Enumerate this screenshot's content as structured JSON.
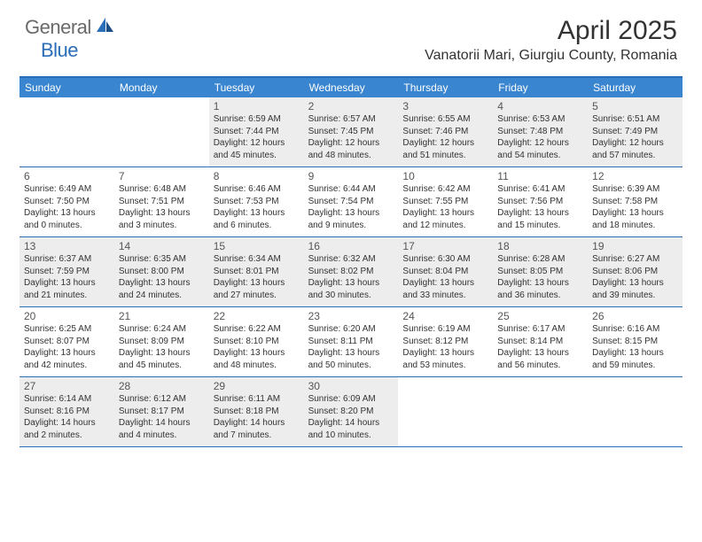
{
  "logo": {
    "text1": "General",
    "text2": "Blue"
  },
  "title": "April 2025",
  "location": "Vanatorii Mari, Giurgiu County, Romania",
  "colors": {
    "header_bg": "#3a85d0",
    "border": "#2a6db8",
    "shaded_bg": "#ededed",
    "text": "#333333",
    "logo_gray": "#6a6a6a",
    "logo_blue": "#2a6db8"
  },
  "day_names": [
    "Sunday",
    "Monday",
    "Tuesday",
    "Wednesday",
    "Thursday",
    "Friday",
    "Saturday"
  ],
  "weeks": [
    [
      {
        "empty": true
      },
      {
        "empty": true
      },
      {
        "n": "1",
        "sr": "6:59 AM",
        "ss": "7:44 PM",
        "dl": "12 hours and 45 minutes."
      },
      {
        "n": "2",
        "sr": "6:57 AM",
        "ss": "7:45 PM",
        "dl": "12 hours and 48 minutes."
      },
      {
        "n": "3",
        "sr": "6:55 AM",
        "ss": "7:46 PM",
        "dl": "12 hours and 51 minutes."
      },
      {
        "n": "4",
        "sr": "6:53 AM",
        "ss": "7:48 PM",
        "dl": "12 hours and 54 minutes."
      },
      {
        "n": "5",
        "sr": "6:51 AM",
        "ss": "7:49 PM",
        "dl": "12 hours and 57 minutes."
      }
    ],
    [
      {
        "n": "6",
        "sr": "6:49 AM",
        "ss": "7:50 PM",
        "dl": "13 hours and 0 minutes."
      },
      {
        "n": "7",
        "sr": "6:48 AM",
        "ss": "7:51 PM",
        "dl": "13 hours and 3 minutes."
      },
      {
        "n": "8",
        "sr": "6:46 AM",
        "ss": "7:53 PM",
        "dl": "13 hours and 6 minutes."
      },
      {
        "n": "9",
        "sr": "6:44 AM",
        "ss": "7:54 PM",
        "dl": "13 hours and 9 minutes."
      },
      {
        "n": "10",
        "sr": "6:42 AM",
        "ss": "7:55 PM",
        "dl": "13 hours and 12 minutes."
      },
      {
        "n": "11",
        "sr": "6:41 AM",
        "ss": "7:56 PM",
        "dl": "13 hours and 15 minutes."
      },
      {
        "n": "12",
        "sr": "6:39 AM",
        "ss": "7:58 PM",
        "dl": "13 hours and 18 minutes."
      }
    ],
    [
      {
        "n": "13",
        "sr": "6:37 AM",
        "ss": "7:59 PM",
        "dl": "13 hours and 21 minutes."
      },
      {
        "n": "14",
        "sr": "6:35 AM",
        "ss": "8:00 PM",
        "dl": "13 hours and 24 minutes."
      },
      {
        "n": "15",
        "sr": "6:34 AM",
        "ss": "8:01 PM",
        "dl": "13 hours and 27 minutes."
      },
      {
        "n": "16",
        "sr": "6:32 AM",
        "ss": "8:02 PM",
        "dl": "13 hours and 30 minutes."
      },
      {
        "n": "17",
        "sr": "6:30 AM",
        "ss": "8:04 PM",
        "dl": "13 hours and 33 minutes."
      },
      {
        "n": "18",
        "sr": "6:28 AM",
        "ss": "8:05 PM",
        "dl": "13 hours and 36 minutes."
      },
      {
        "n": "19",
        "sr": "6:27 AM",
        "ss": "8:06 PM",
        "dl": "13 hours and 39 minutes."
      }
    ],
    [
      {
        "n": "20",
        "sr": "6:25 AM",
        "ss": "8:07 PM",
        "dl": "13 hours and 42 minutes."
      },
      {
        "n": "21",
        "sr": "6:24 AM",
        "ss": "8:09 PM",
        "dl": "13 hours and 45 minutes."
      },
      {
        "n": "22",
        "sr": "6:22 AM",
        "ss": "8:10 PM",
        "dl": "13 hours and 48 minutes."
      },
      {
        "n": "23",
        "sr": "6:20 AM",
        "ss": "8:11 PM",
        "dl": "13 hours and 50 minutes."
      },
      {
        "n": "24",
        "sr": "6:19 AM",
        "ss": "8:12 PM",
        "dl": "13 hours and 53 minutes."
      },
      {
        "n": "25",
        "sr": "6:17 AM",
        "ss": "8:14 PM",
        "dl": "13 hours and 56 minutes."
      },
      {
        "n": "26",
        "sr": "6:16 AM",
        "ss": "8:15 PM",
        "dl": "13 hours and 59 minutes."
      }
    ],
    [
      {
        "n": "27",
        "sr": "6:14 AM",
        "ss": "8:16 PM",
        "dl": "14 hours and 2 minutes."
      },
      {
        "n": "28",
        "sr": "6:12 AM",
        "ss": "8:17 PM",
        "dl": "14 hours and 4 minutes."
      },
      {
        "n": "29",
        "sr": "6:11 AM",
        "ss": "8:18 PM",
        "dl": "14 hours and 7 minutes."
      },
      {
        "n": "30",
        "sr": "6:09 AM",
        "ss": "8:20 PM",
        "dl": "14 hours and 10 minutes."
      },
      {
        "empty": true
      },
      {
        "empty": true
      },
      {
        "empty": true
      }
    ]
  ],
  "shaded_rows": [
    0,
    2,
    4
  ],
  "labels": {
    "sunrise": "Sunrise:",
    "sunset": "Sunset:",
    "daylight": "Daylight:"
  }
}
